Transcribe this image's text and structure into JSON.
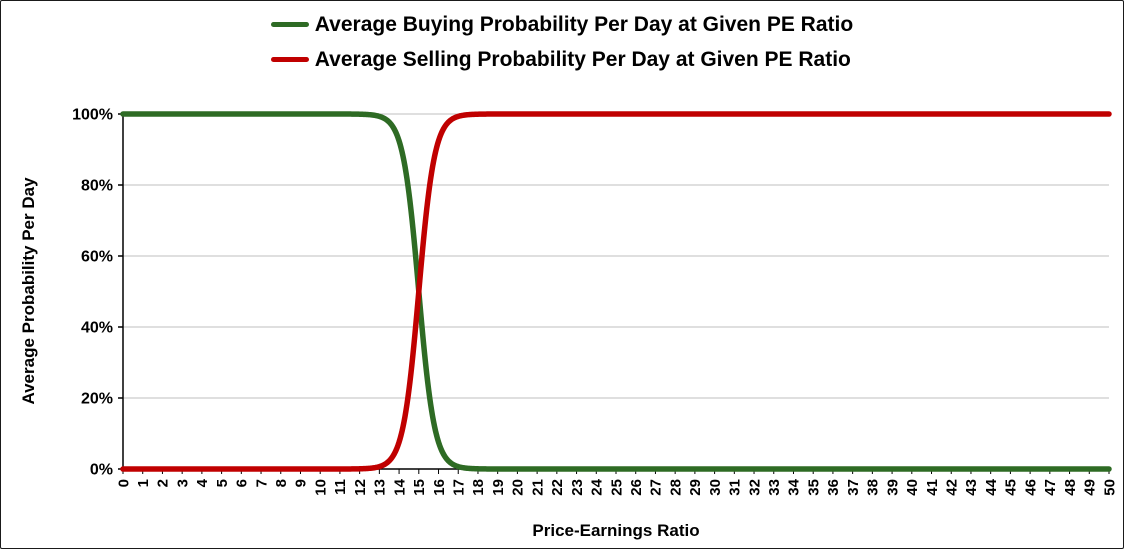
{
  "chart_data": {
    "type": "line",
    "title": "",
    "xlabel": "Price-Earnings Ratio",
    "ylabel": "Average Probability Per Day",
    "y_ticks": [
      "0%",
      "20%",
      "40%",
      "60%",
      "80%",
      "100%"
    ],
    "y_tick_values": [
      0,
      20,
      40,
      60,
      80,
      100
    ],
    "x_range": [
      0,
      50
    ],
    "y_range": [
      0,
      100
    ],
    "grid": "horizontal",
    "legend_position": "top",
    "axis_color": "#000000",
    "grid_color": "#bfbfbf",
    "categories": [
      0,
      1,
      2,
      3,
      4,
      5,
      6,
      7,
      8,
      9,
      10,
      11,
      12,
      13,
      14,
      15,
      16,
      17,
      18,
      19,
      20,
      21,
      22,
      23,
      24,
      25,
      26,
      27,
      28,
      29,
      30,
      31,
      32,
      33,
      34,
      35,
      36,
      37,
      38,
      39,
      40,
      41,
      42,
      43,
      44,
      45,
      46,
      47,
      48,
      49,
      50
    ],
    "series": [
      {
        "name": "Average Buying Probability Per Day at Given PE Ratio",
        "color": "#2e6b24",
        "logistic": {
          "midpoint": 15,
          "steepness": 2.5,
          "direction": "decreasing"
        },
        "values": [
          100,
          100,
          100,
          100,
          100,
          100,
          100,
          100,
          100,
          100,
          100,
          100,
          99.9,
          99.3,
          92.4,
          50,
          7.6,
          0.7,
          0.1,
          0,
          0,
          0,
          0,
          0,
          0,
          0,
          0,
          0,
          0,
          0,
          0,
          0,
          0,
          0,
          0,
          0,
          0,
          0,
          0,
          0,
          0,
          0,
          0,
          0,
          0,
          0,
          0,
          0,
          0,
          0,
          0
        ]
      },
      {
        "name": "Average Selling Probability Per Day at Given PE Ratio",
        "color": "#c00000",
        "logistic": {
          "midpoint": 15,
          "steepness": 2.5,
          "direction": "increasing"
        },
        "values": [
          0,
          0,
          0,
          0,
          0,
          0,
          0,
          0,
          0,
          0,
          0,
          0,
          0.1,
          0.7,
          7.6,
          50,
          92.4,
          99.3,
          99.9,
          100,
          100,
          100,
          100,
          100,
          100,
          100,
          100,
          100,
          100,
          100,
          100,
          100,
          100,
          100,
          100,
          100,
          100,
          100,
          100,
          100,
          100,
          100,
          100,
          100,
          100,
          100,
          100,
          100,
          100,
          100,
          100
        ]
      }
    ]
  }
}
